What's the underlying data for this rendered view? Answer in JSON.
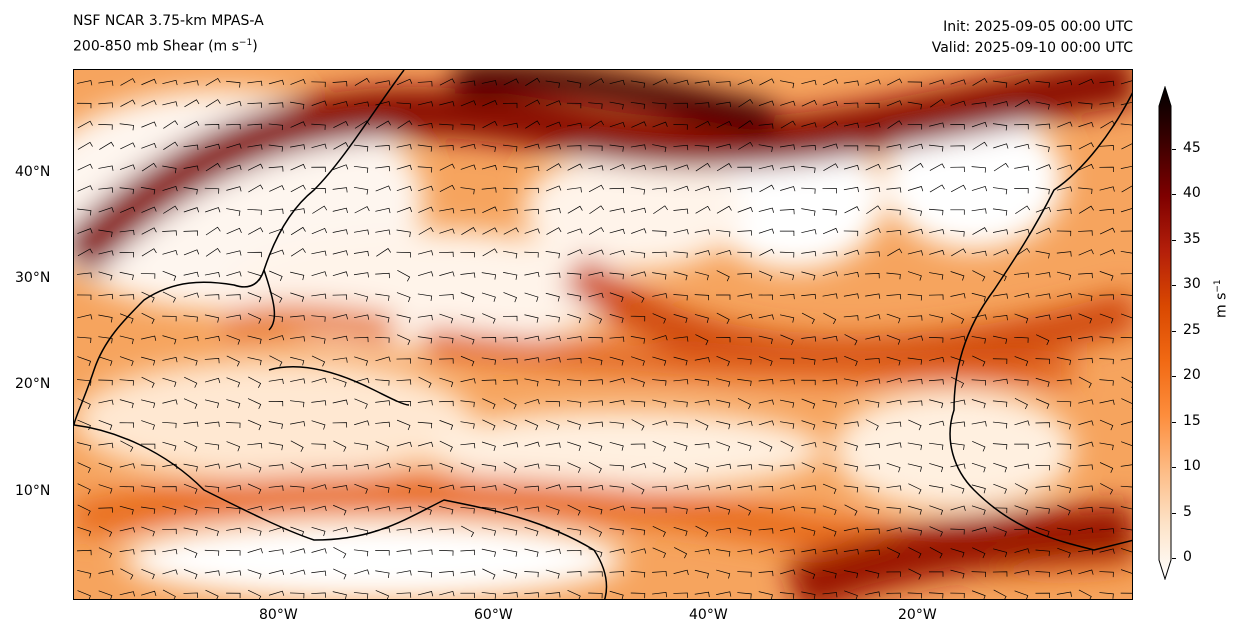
{
  "header": {
    "model": "NSF NCAR 3.75-km MPAS-A",
    "field": "200-850 mb Shear (m s",
    "field_sup": "−1",
    "field_end": ")",
    "init": "Init: 2025-09-05 00:00 UTC",
    "valid": "Valid: 2025-09-10 00:00 UTC"
  },
  "map": {
    "lat_labels": [
      "40°N",
      "30°N",
      "20°N",
      "10°N"
    ],
    "lon_labels": [
      "80°W",
      "60°W",
      "40°W",
      "20°W"
    ]
  },
  "colorbar": {
    "label": "m s",
    "label_sup": "−1",
    "ticks": [
      "0",
      "5",
      "10",
      "15",
      "20",
      "25",
      "30",
      "35",
      "40",
      "45"
    ],
    "colors": [
      "#ffffff",
      "#fde3c8",
      "#fdbb84",
      "#fd8d3c",
      "#f16913",
      "#d94801",
      "#b41f0a",
      "#7f0000",
      "#3b0000",
      "#000000"
    ]
  }
}
